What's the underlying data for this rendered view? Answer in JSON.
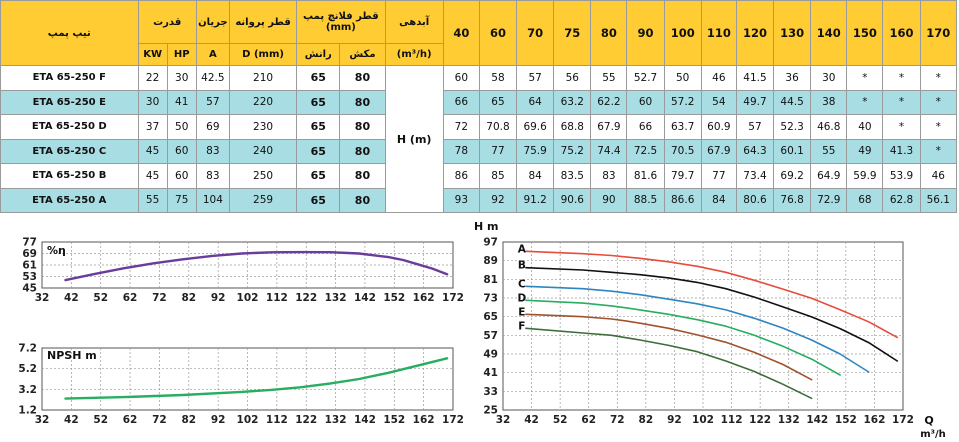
{
  "table": {
    "headers": {
      "model": "تیپ پمپ",
      "power": "قدرت",
      "current": "جریان",
      "impeller": "قطر پروانه",
      "flange": "قطر فلانچ پمپ",
      "flange_unit": "(mm)",
      "flow": "آبدهی",
      "flow_unit": "(m³/h)",
      "kw": "KW",
      "hp": "HP",
      "amp": "A",
      "dmm": "D (mm)",
      "discharge": "رانش",
      "suction": "مکش",
      "head_label": "H (m)"
    },
    "flows": [
      "40",
      "60",
      "70",
      "75",
      "80",
      "90",
      "100",
      "110",
      "120",
      "130",
      "140",
      "150",
      "160",
      "170"
    ],
    "rows": [
      {
        "model": "ETA 65-250 F",
        "kw": "22",
        "hp": "30",
        "amp": "42.5",
        "d": "210",
        "discharge": "65",
        "suction": "80",
        "heads": [
          "60",
          "58",
          "57",
          "56",
          "55",
          "52.7",
          "50",
          "46",
          "41.5",
          "36",
          "30",
          "*",
          "*",
          "*"
        ]
      },
      {
        "model": "ETA 65-250 E",
        "kw": "30",
        "hp": "41",
        "amp": "57",
        "d": "220",
        "discharge": "65",
        "suction": "80",
        "heads": [
          "66",
          "65",
          "64",
          "63.2",
          "62.2",
          "60",
          "57.2",
          "54",
          "49.7",
          "44.5",
          "38",
          "*",
          "*",
          "*"
        ]
      },
      {
        "model": "ETA 65-250 D",
        "kw": "37",
        "hp": "50",
        "amp": "69",
        "d": "230",
        "discharge": "65",
        "suction": "80",
        "heads": [
          "72",
          "70.8",
          "69.6",
          "68.8",
          "67.9",
          "66",
          "63.7",
          "60.9",
          "57",
          "52.3",
          "46.8",
          "40",
          "*",
          "*"
        ]
      },
      {
        "model": "ETA 65-250 C",
        "kw": "45",
        "hp": "60",
        "amp": "83",
        "d": "240",
        "discharge": "65",
        "suction": "80",
        "heads": [
          "78",
          "77",
          "75.9",
          "75.2",
          "74.4",
          "72.5",
          "70.5",
          "67.9",
          "64.3",
          "60.1",
          "55",
          "49",
          "41.3",
          "*"
        ]
      },
      {
        "model": "ETA 65-250 B",
        "kw": "45",
        "hp": "60",
        "amp": "83",
        "d": "250",
        "discharge": "65",
        "suction": "80",
        "heads": [
          "86",
          "85",
          "84",
          "83.5",
          "83",
          "81.6",
          "79.7",
          "77",
          "73.4",
          "69.2",
          "64.9",
          "59.9",
          "53.9",
          "46"
        ]
      },
      {
        "model": "ETA 65-250 A",
        "kw": "55",
        "hp": "75",
        "amp": "104",
        "d": "259",
        "discharge": "65",
        "suction": "80",
        "heads": [
          "93",
          "92",
          "91.2",
          "90.6",
          "90",
          "88.5",
          "86.6",
          "84",
          "80.6",
          "76.8",
          "72.9",
          "68",
          "62.8",
          "56.1"
        ]
      }
    ]
  },
  "chart_data": [
    {
      "type": "line",
      "title": "%η",
      "xlabel": "",
      "ylabel": "",
      "x_ticks": [
        32,
        42,
        52,
        62,
        72,
        82,
        92,
        102,
        112,
        122,
        132,
        142,
        152,
        162,
        172
      ],
      "y_ticks": [
        45,
        53,
        61,
        69,
        77
      ],
      "xlim": [
        32,
        172
      ],
      "ylim": [
        45,
        77
      ],
      "grid": true,
      "series": [
        {
          "color": "#6a3d9a",
          "x": [
            40,
            50,
            60,
            70,
            80,
            90,
            100,
            110,
            120,
            130,
            140,
            150,
            155,
            160,
            165,
            170
          ],
          "y": [
            50.5,
            54.8,
            58.8,
            62.2,
            65.0,
            67.3,
            69.0,
            69.8,
            70.0,
            69.9,
            69.0,
            66.5,
            64.5,
            61.5,
            58.5,
            54.5
          ]
        }
      ]
    },
    {
      "type": "line",
      "title": "NPSH m",
      "xlabel": "",
      "ylabel": "",
      "x_ticks": [
        32,
        42,
        52,
        62,
        72,
        82,
        92,
        102,
        112,
        122,
        132,
        142,
        152,
        162,
        172
      ],
      "y_ticks": [
        1.2,
        3.2,
        5.2,
        7.2
      ],
      "xlim": [
        32,
        172
      ],
      "ylim": [
        1.2,
        7.2
      ],
      "grid": true,
      "series": [
        {
          "color": "#27ae60",
          "x": [
            40,
            60,
            80,
            100,
            110,
            120,
            130,
            140,
            150,
            160,
            170
          ],
          "y": [
            2.3,
            2.45,
            2.65,
            2.95,
            3.15,
            3.4,
            3.75,
            4.2,
            4.8,
            5.5,
            6.2
          ]
        }
      ]
    },
    {
      "type": "line",
      "title": "H m",
      "xlabel": "Q",
      "xunit": "m³/h",
      "ylabel": "",
      "x_ticks": [
        32,
        42,
        52,
        62,
        72,
        82,
        92,
        102,
        112,
        122,
        132,
        142,
        152,
        162,
        172
      ],
      "y_ticks": [
        25,
        33,
        41,
        49,
        57,
        65,
        73,
        81,
        89,
        97
      ],
      "xlim": [
        32,
        172
      ],
      "ylim": [
        25,
        97
      ],
      "grid": true,
      "series": [
        {
          "name": "A",
          "color": "#e74c3c",
          "x": [
            40,
            60,
            70,
            75,
            80,
            90,
            100,
            110,
            120,
            130,
            140,
            150,
            160,
            170
          ],
          "y": [
            93,
            92,
            91.2,
            90.6,
            90,
            88.5,
            86.6,
            84,
            80.6,
            76.8,
            72.9,
            68,
            62.8,
            56.1
          ]
        },
        {
          "name": "B",
          "color": "#111111",
          "x": [
            40,
            60,
            70,
            75,
            80,
            90,
            100,
            110,
            120,
            130,
            140,
            150,
            160,
            170
          ],
          "y": [
            86,
            85,
            84,
            83.5,
            83,
            81.6,
            79.7,
            77,
            73.4,
            69.2,
            64.9,
            59.9,
            53.9,
            46
          ]
        },
        {
          "name": "C",
          "color": "#2e86c1",
          "x": [
            40,
            60,
            70,
            75,
            80,
            90,
            100,
            110,
            120,
            130,
            140,
            150,
            160
          ],
          "y": [
            78,
            77,
            75.9,
            75.2,
            74.4,
            72.5,
            70.5,
            67.9,
            64.3,
            60.1,
            55,
            49,
            41.3
          ]
        },
        {
          "name": "D",
          "color": "#27ae60",
          "x": [
            40,
            60,
            70,
            75,
            80,
            90,
            100,
            110,
            120,
            130,
            140,
            150
          ],
          "y": [
            72,
            70.8,
            69.6,
            68.8,
            67.9,
            66,
            63.7,
            60.9,
            57,
            52.3,
            46.8,
            40
          ]
        },
        {
          "name": "E",
          "color": "#a0522d",
          "x": [
            40,
            60,
            70,
            75,
            80,
            90,
            100,
            110,
            120,
            130,
            140
          ],
          "y": [
            66,
            65,
            64,
            63.2,
            62.2,
            60,
            57.2,
            54,
            49.7,
            44.5,
            38
          ]
        },
        {
          "name": "F",
          "color": "#3b6e3b",
          "x": [
            40,
            60,
            70,
            75,
            80,
            90,
            100,
            110,
            120,
            130,
            140
          ],
          "y": [
            60,
            58,
            57,
            56,
            55,
            52.7,
            50,
            46,
            41.5,
            36,
            30
          ]
        }
      ]
    }
  ]
}
